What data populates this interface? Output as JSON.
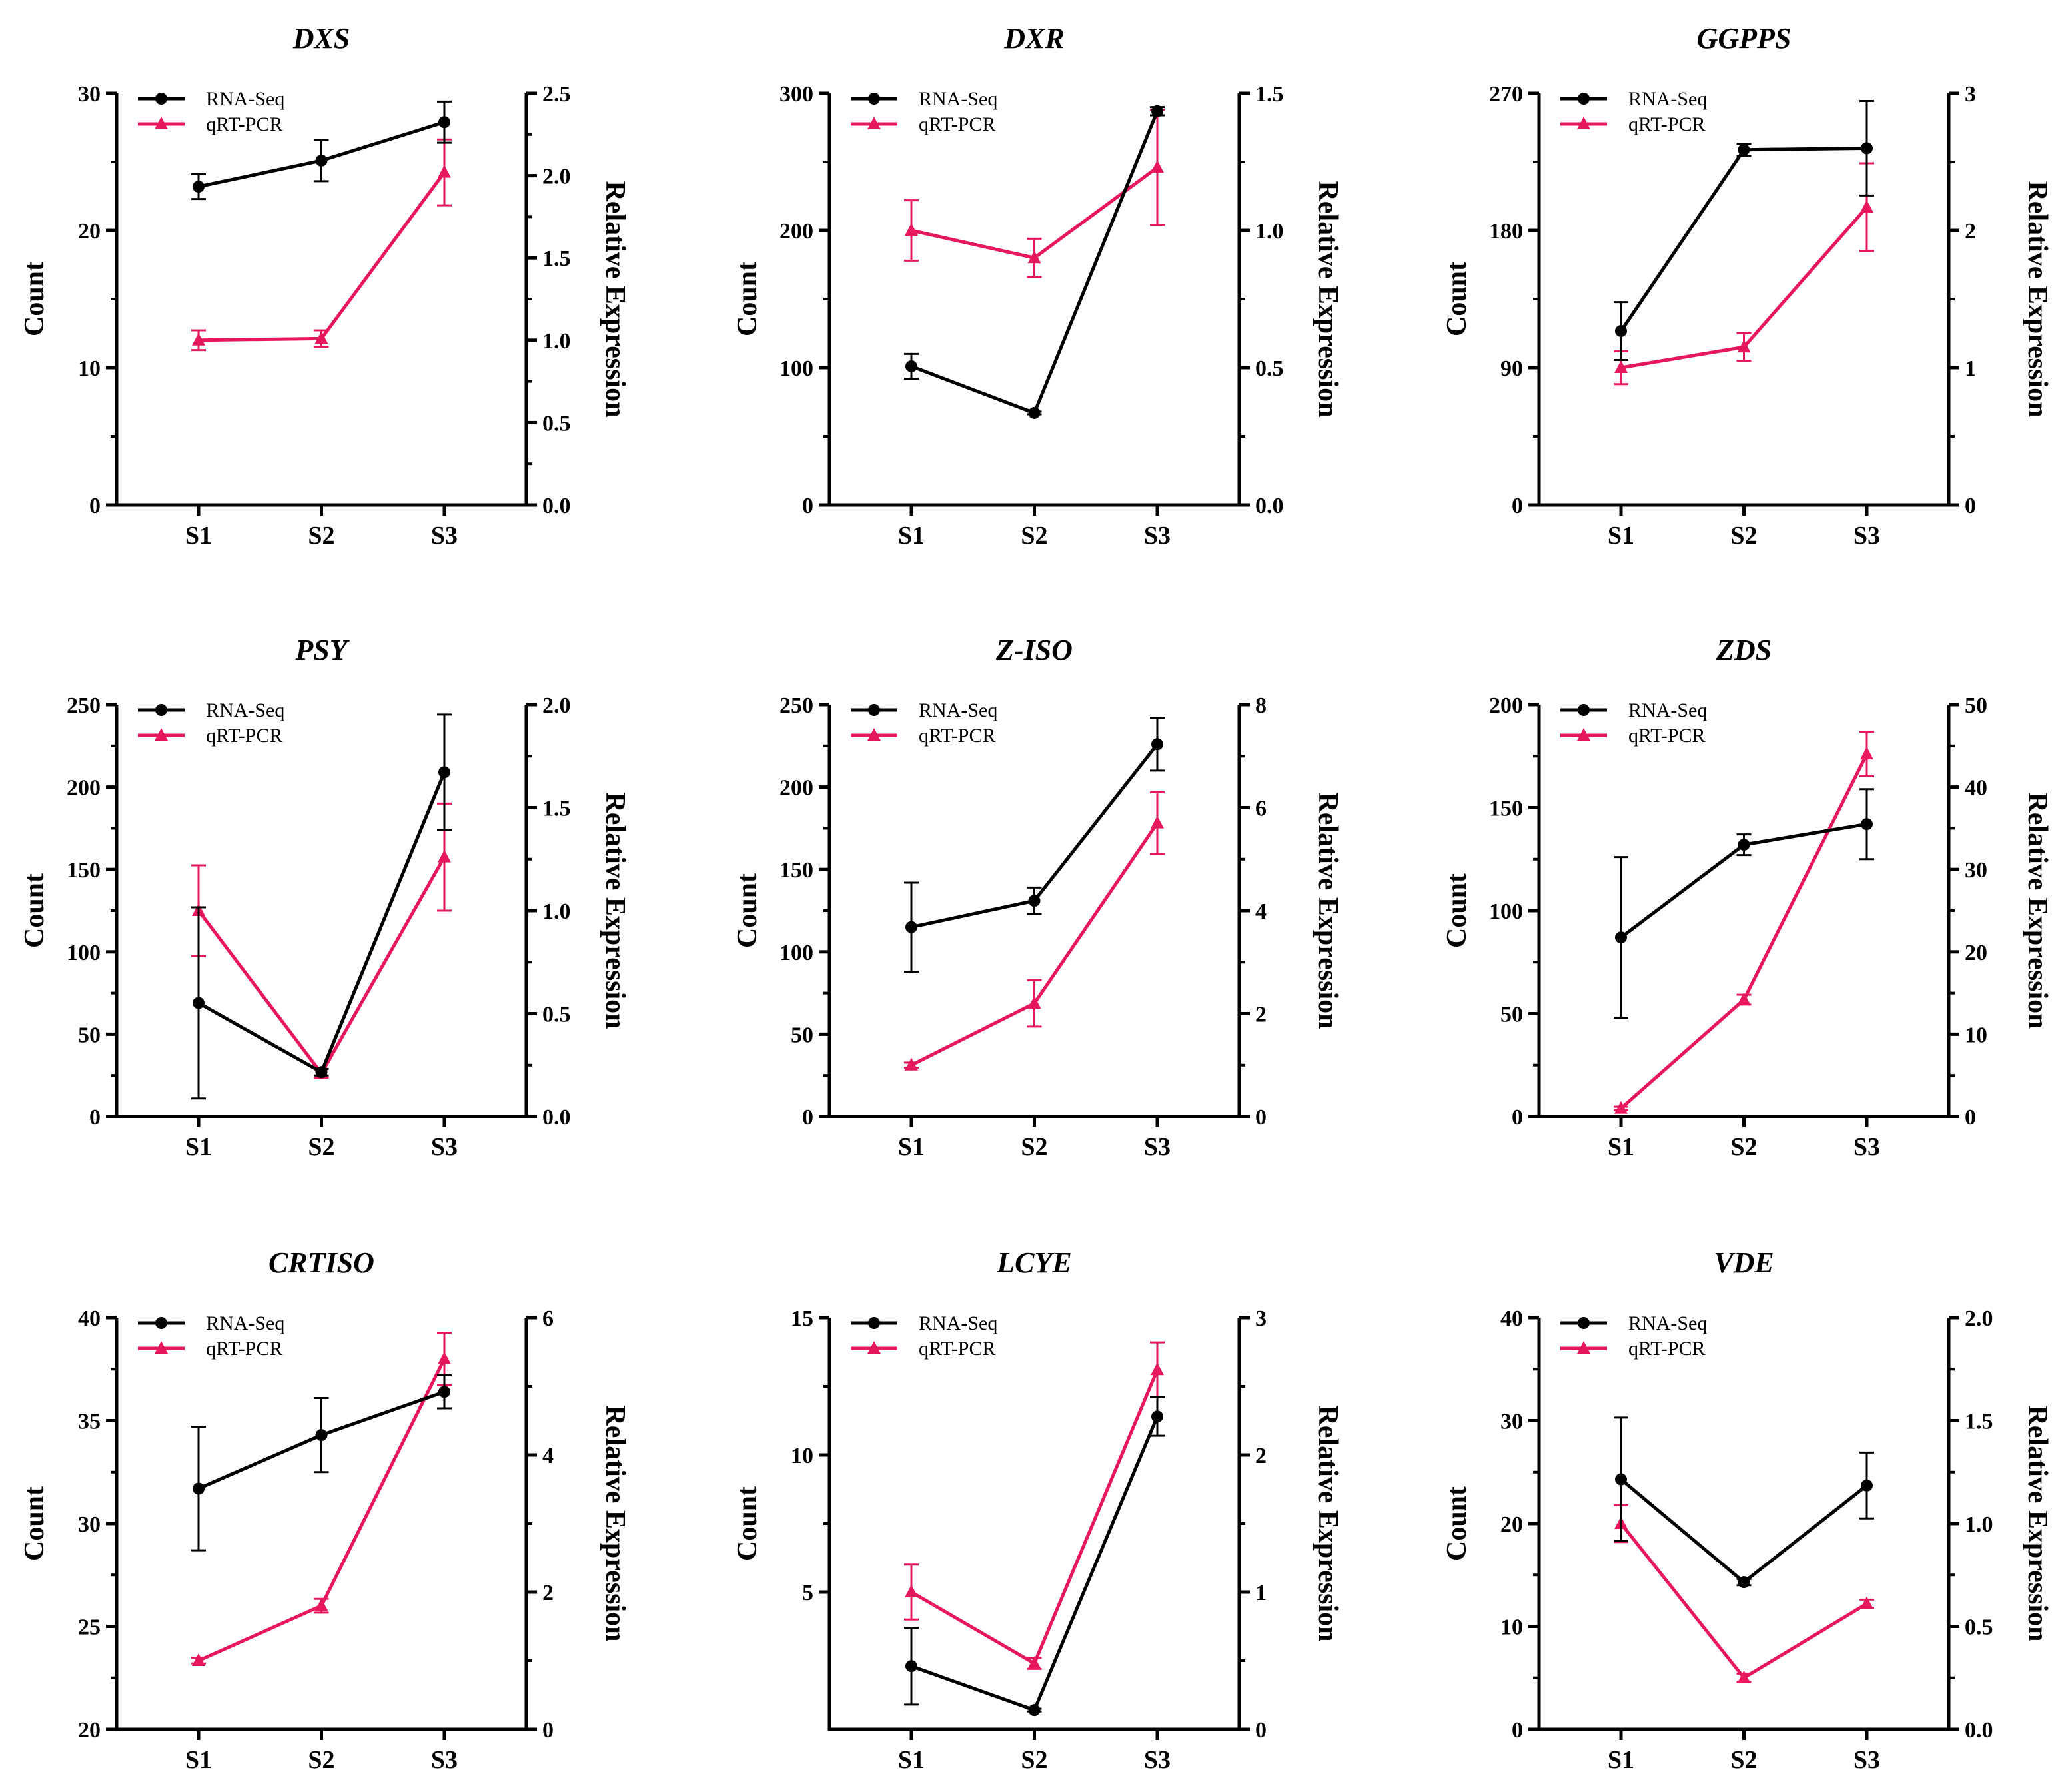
{
  "figure": {
    "left_axis_label": "Count",
    "right_axis_label": "Relative Expression",
    "legend": [
      "RNA-Seq",
      "qRT-PCR"
    ],
    "series_colors": {
      "RNA-Seq": "#000000",
      "qRT-PCR": "#e6175c"
    }
  },
  "chart_data": [
    {
      "type": "line",
      "title": "DXS",
      "categories": [
        "S1",
        "S2",
        "S3"
      ],
      "ylabel": "Count",
      "y2label": "Relative Expression",
      "ylim": [
        0,
        30
      ],
      "yticks": [
        0,
        10,
        20,
        30
      ],
      "ytick_labels": [
        "0",
        "10",
        "20",
        "30"
      ],
      "y2lim": [
        0,
        2.5
      ],
      "y2ticks": [
        0,
        0.5,
        1.0,
        1.5,
        2.0,
        2.5
      ],
      "y2tick_labels": [
        "0.0",
        "0.5",
        "1.0",
        "1.5",
        "2.0",
        "2.5"
      ],
      "series": [
        {
          "name": "RNA-Seq",
          "axis": "left",
          "values": [
            23.2,
            25.1,
            27.9
          ],
          "errors": [
            0.9,
            1.5,
            1.5
          ]
        },
        {
          "name": "qRT-PCR",
          "axis": "right",
          "values": [
            1.0,
            1.01,
            2.02
          ],
          "errors": [
            0.06,
            0.05,
            0.2
          ]
        }
      ]
    },
    {
      "type": "line",
      "title": "DXR",
      "categories": [
        "S1",
        "S2",
        "S3"
      ],
      "ylabel": "Count",
      "y2label": "Relative Expression",
      "ylim": [
        0,
        300
      ],
      "yticks": [
        0,
        100,
        200,
        300
      ],
      "ytick_labels": [
        "0",
        "100",
        "200",
        "300"
      ],
      "y2lim": [
        0,
        1.5
      ],
      "y2ticks": [
        0,
        0.5,
        1.0,
        1.5
      ],
      "y2tick_labels": [
        "0.0",
        "0.5",
        "1.0",
        "1.5"
      ],
      "series": [
        {
          "name": "RNA-Seq",
          "axis": "left",
          "values": [
            101,
            67,
            287
          ],
          "errors": [
            9,
            1,
            3
          ]
        },
        {
          "name": "qRT-PCR",
          "axis": "right",
          "values": [
            1.0,
            0.9,
            1.23
          ],
          "errors": [
            0.11,
            0.07,
            0.21
          ]
        }
      ]
    },
    {
      "type": "line",
      "title": "GGPPS",
      "categories": [
        "S1",
        "S2",
        "S3"
      ],
      "ylabel": "Count",
      "y2label": "Relative Expression",
      "ylim": [
        0,
        270
      ],
      "yticks": [
        0,
        90,
        180,
        270
      ],
      "ytick_labels": [
        "0",
        "90",
        "180",
        "270"
      ],
      "y2lim": [
        0,
        3
      ],
      "y2ticks": [
        0,
        1,
        2,
        3
      ],
      "y2tick_labels": [
        "0",
        "1",
        "2",
        "3"
      ],
      "series": [
        {
          "name": "RNA-Seq",
          "axis": "left",
          "values": [
            114,
            233,
            234
          ],
          "errors": [
            19,
            4,
            31
          ]
        },
        {
          "name": "qRT-PCR",
          "axis": "right",
          "values": [
            1.0,
            1.15,
            2.17
          ],
          "errors": [
            0.12,
            0.1,
            0.32
          ]
        }
      ]
    },
    {
      "type": "line",
      "title": "PSY",
      "categories": [
        "S1",
        "S2",
        "S3"
      ],
      "ylabel": "Count",
      "y2label": "Relative Expression",
      "ylim": [
        0,
        250
      ],
      "yticks": [
        0,
        50,
        100,
        150,
        200,
        250
      ],
      "ytick_labels": [
        "0",
        "50",
        "100",
        "150",
        "200",
        "250"
      ],
      "y2lim": [
        0,
        2.0
      ],
      "y2ticks": [
        0,
        0.5,
        1.0,
        1.5,
        2.0
      ],
      "y2tick_labels": [
        "0.0",
        "0.5",
        "1.0",
        "1.5",
        "2.0"
      ],
      "series": [
        {
          "name": "RNA-Seq",
          "axis": "left",
          "values": [
            69,
            27,
            209
          ],
          "errors": [
            58,
            2,
            35
          ]
        },
        {
          "name": "qRT-PCR",
          "axis": "right",
          "values": [
            1.0,
            0.21,
            1.26
          ],
          "errors": [
            0.22,
            0.02,
            0.26
          ]
        }
      ]
    },
    {
      "type": "line",
      "title": "Z-ISO",
      "categories": [
        "S1",
        "S2",
        "S3"
      ],
      "ylabel": "Count",
      "y2label": "Relative Expression",
      "ylim": [
        0,
        250
      ],
      "yticks": [
        0,
        50,
        100,
        150,
        200,
        250
      ],
      "ytick_labels": [
        "0",
        "50",
        "100",
        "150",
        "200",
        "250"
      ],
      "y2lim": [
        0,
        8
      ],
      "y2ticks": [
        0,
        2,
        4,
        6,
        8
      ],
      "y2tick_labels": [
        "0",
        "2",
        "4",
        "6",
        "8"
      ],
      "series": [
        {
          "name": "RNA-Seq",
          "axis": "left",
          "values": [
            115,
            131,
            226
          ],
          "errors": [
            27,
            8,
            16
          ]
        },
        {
          "name": "qRT-PCR",
          "axis": "right",
          "values": [
            1.0,
            2.2,
            5.7
          ],
          "errors": [
            0.05,
            0.45,
            0.6
          ]
        }
      ]
    },
    {
      "type": "line",
      "title": "ZDS",
      "categories": [
        "S1",
        "S2",
        "S3"
      ],
      "ylabel": "Count",
      "y2label": "Relative Expression",
      "ylim": [
        0,
        200
      ],
      "yticks": [
        0,
        50,
        100,
        150,
        200
      ],
      "ytick_labels": [
        "0",
        "50",
        "100",
        "150",
        "200"
      ],
      "y2lim": [
        0,
        50
      ],
      "y2ticks": [
        0,
        10,
        20,
        30,
        40,
        50
      ],
      "y2tick_labels": [
        "0",
        "10",
        "20",
        "30",
        "40",
        "50"
      ],
      "series": [
        {
          "name": "RNA-Seq",
          "axis": "left",
          "values": [
            87,
            132,
            142
          ],
          "errors": [
            39,
            5,
            17
          ]
        },
        {
          "name": "qRT-PCR",
          "axis": "right",
          "values": [
            1.0,
            14.2,
            44
          ],
          "errors": [
            0.2,
            0.6,
            2.7
          ]
        }
      ]
    },
    {
      "type": "line",
      "title": "CRTISO",
      "categories": [
        "S1",
        "S2",
        "S3"
      ],
      "ylabel": "Count",
      "y2label": "Relative Expression",
      "ylim": [
        20,
        40
      ],
      "yticks": [
        20,
        25,
        30,
        35,
        40
      ],
      "ytick_labels": [
        "20",
        "25",
        "30",
        "35",
        "40"
      ],
      "y2lim": [
        0,
        6
      ],
      "y2ticks": [
        0,
        2,
        4,
        6
      ],
      "y2tick_labels": [
        "0",
        "2",
        "4",
        "6"
      ],
      "series": [
        {
          "name": "RNA-Seq",
          "axis": "left",
          "values": [
            31.7,
            34.3,
            36.4
          ],
          "errors": [
            3.0,
            1.8,
            0.8
          ]
        },
        {
          "name": "qRT-PCR",
          "axis": "right",
          "values": [
            1.0,
            1.8,
            5.4
          ],
          "errors": [
            0.04,
            0.1,
            0.38
          ]
        }
      ]
    },
    {
      "type": "line",
      "title": "LCYE",
      "categories": [
        "S1",
        "S2",
        "S3"
      ],
      "ylabel": "Count",
      "y2label": "Relative Expression",
      "ylim": [
        0,
        15
      ],
      "yticks": [
        5,
        10,
        15
      ],
      "ytick_labels": [
        "5",
        "10",
        "15"
      ],
      "y2lim": [
        0,
        3
      ],
      "y2ticks": [
        0,
        1,
        2,
        3
      ],
      "y2tick_labels": [
        "0",
        "1",
        "2",
        "3"
      ],
      "series": [
        {
          "name": "RNA-Seq",
          "axis": "left",
          "values": [
            2.3,
            0.7,
            11.4
          ],
          "errors": [
            1.4,
            0.05,
            0.7
          ]
        },
        {
          "name": "qRT-PCR",
          "axis": "right",
          "values": [
            1.0,
            0.48,
            2.62
          ],
          "errors": [
            0.2,
            0.04,
            0.2
          ]
        }
      ]
    },
    {
      "type": "line",
      "title": "VDE",
      "categories": [
        "S1",
        "S2",
        "S3"
      ],
      "ylabel": "Count",
      "y2label": "Relative Expression",
      "ylim": [
        0,
        40
      ],
      "yticks": [
        0,
        10,
        20,
        30,
        40
      ],
      "ytick_labels": [
        "0",
        "10",
        "20",
        "30",
        "40"
      ],
      "y2lim": [
        0,
        2.0
      ],
      "y2ticks": [
        0,
        0.5,
        1.0,
        1.5,
        2.0
      ],
      "y2tick_labels": [
        "0.0",
        "0.5",
        "1.0",
        "1.5",
        "2.0"
      ],
      "series": [
        {
          "name": "RNA-Seq",
          "axis": "left",
          "values": [
            24.3,
            14.3,
            23.7
          ],
          "errors": [
            6.0,
            0.3,
            3.2
          ]
        },
        {
          "name": "qRT-PCR",
          "axis": "right",
          "values": [
            1.0,
            0.25,
            0.61
          ],
          "errors": [
            0.09,
            0.02,
            0.02
          ]
        }
      ]
    }
  ]
}
